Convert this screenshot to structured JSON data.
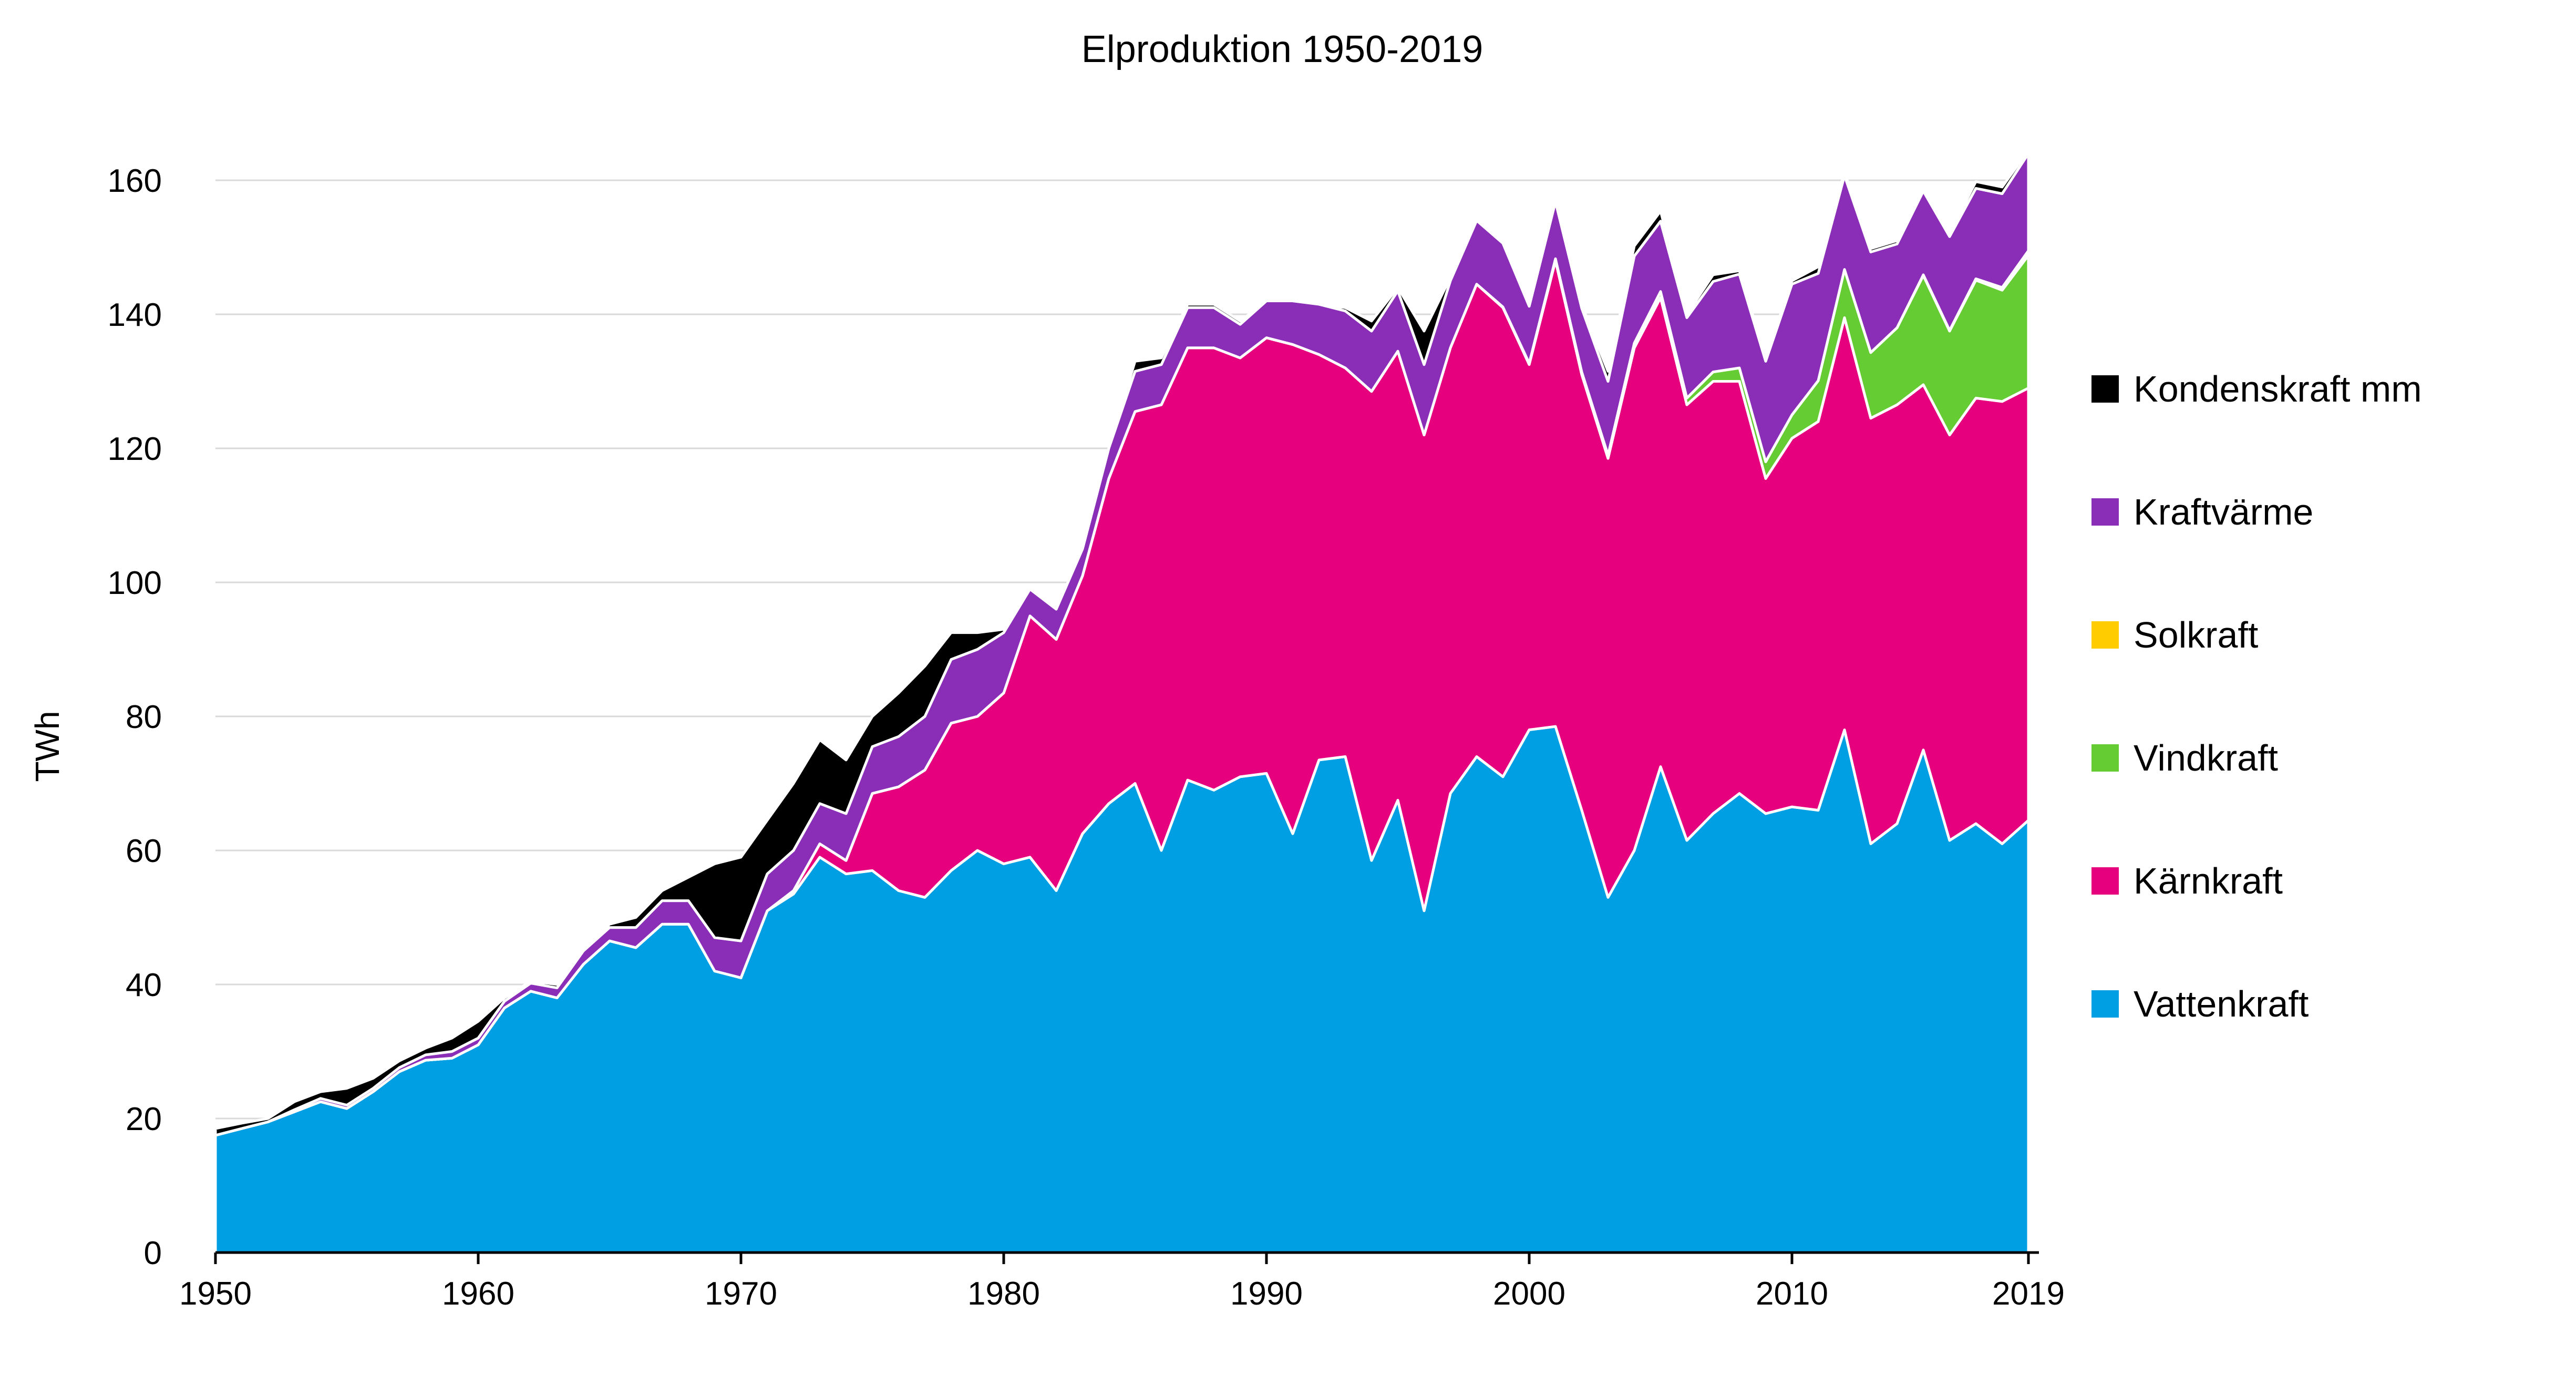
{
  "chart_data": {
    "type": "area",
    "stacked": true,
    "title": "Elproduktion 1950-2019",
    "ylabel": "TWh",
    "xlabel": "",
    "ylim": [
      0,
      170
    ],
    "yticks": [
      0,
      20,
      40,
      60,
      80,
      100,
      120,
      140,
      160
    ],
    "xlim": [
      1950,
      2019
    ],
    "xticks": [
      1950,
      1960,
      1970,
      1980,
      1990,
      2000,
      2010,
      2019
    ],
    "grid": "horizontal",
    "legend_position": "right",
    "years": [
      1950,
      1951,
      1952,
      1953,
      1954,
      1955,
      1956,
      1957,
      1958,
      1959,
      1960,
      1961,
      1962,
      1963,
      1964,
      1965,
      1966,
      1967,
      1968,
      1969,
      1970,
      1971,
      1972,
      1973,
      1974,
      1975,
      1976,
      1977,
      1978,
      1979,
      1980,
      1981,
      1982,
      1983,
      1984,
      1985,
      1986,
      1987,
      1988,
      1989,
      1990,
      1991,
      1992,
      1993,
      1994,
      1995,
      1996,
      1997,
      1998,
      1999,
      2000,
      2001,
      2002,
      2003,
      2004,
      2005,
      2006,
      2007,
      2008,
      2009,
      2010,
      2011,
      2012,
      2013,
      2014,
      2015,
      2016,
      2017,
      2018,
      2019
    ],
    "series": [
      {
        "name": "Vattenkraft",
        "color": "#009fe3",
        "values": [
          17.5,
          18.5,
          19.5,
          21.0,
          22.5,
          21.5,
          24.0,
          27.0,
          28.7,
          29.0,
          31.0,
          36.5,
          39.0,
          38.0,
          43.0,
          46.5,
          45.5,
          49.0,
          49.0,
          42.0,
          41.0,
          51.0,
          53.5,
          59.0,
          56.5,
          57.0,
          54.0,
          53.0,
          57.0,
          60.0,
          58.0,
          59.0,
          54.0,
          62.5,
          67.0,
          70.0,
          60.0,
          70.5,
          69.0,
          71.0,
          71.5,
          62.5,
          73.5,
          74.0,
          58.5,
          67.5,
          51.0,
          68.5,
          74.0,
          71.0,
          78.0,
          78.5,
          66.0,
          53.0,
          60.0,
          72.5,
          61.5,
          65.5,
          68.5,
          65.5,
          66.5,
          66.0,
          78.0,
          61.0,
          64.0,
          75.0,
          61.5,
          64.0,
          61.0,
          64.5
        ]
      },
      {
        "name": "Kärnkraft",
        "color": "#e6007e",
        "values": [
          0,
          0,
          0,
          0,
          0,
          0,
          0,
          0,
          0,
          0,
          0,
          0,
          0,
          0,
          0,
          0,
          0,
          0,
          0,
          0,
          0,
          0,
          0.5,
          2.0,
          2.0,
          11.5,
          15.5,
          19.0,
          22.0,
          20.0,
          25.5,
          36.0,
          37.5,
          38.5,
          48.5,
          55.5,
          66.5,
          64.5,
          66.0,
          62.5,
          65.0,
          73.0,
          60.5,
          58.0,
          70.0,
          67.0,
          71.0,
          66.5,
          70.5,
          70.0,
          54.5,
          69.5,
          65.0,
          65.5,
          75.0,
          70.0,
          65.0,
          64.5,
          61.5,
          50.0,
          55.0,
          58.0,
          61.5,
          63.5,
          62.5,
          54.5,
          60.5,
          63.5,
          66.0,
          64.5
        ]
      },
      {
        "name": "Vindkraft",
        "color": "#66cc33",
        "values": [
          0,
          0,
          0,
          0,
          0,
          0,
          0,
          0,
          0,
          0,
          0,
          0,
          0,
          0,
          0,
          0,
          0,
          0,
          0,
          0,
          0,
          0,
          0,
          0,
          0,
          0,
          0,
          0,
          0,
          0,
          0,
          0,
          0,
          0,
          0,
          0,
          0,
          0,
          0,
          0,
          0,
          0,
          0,
          0,
          0,
          0,
          0,
          0,
          0,
          0.1,
          0.2,
          0.3,
          0.4,
          0.5,
          0.7,
          0.9,
          1.0,
          1.4,
          2.0,
          2.5,
          3.5,
          6.1,
          7.2,
          9.8,
          11.5,
          16.3,
          15.5,
          17.6,
          16.6,
          19.8
        ]
      },
      {
        "name": "Solkraft",
        "color": "#ffcc00",
        "values": [
          0,
          0,
          0,
          0,
          0,
          0,
          0,
          0,
          0,
          0,
          0,
          0,
          0,
          0,
          0,
          0,
          0,
          0,
          0,
          0,
          0,
          0,
          0,
          0,
          0,
          0,
          0,
          0,
          0,
          0,
          0,
          0,
          0,
          0,
          0,
          0,
          0,
          0,
          0,
          0,
          0,
          0,
          0,
          0,
          0,
          0,
          0,
          0,
          0,
          0,
          0,
          0,
          0,
          0,
          0,
          0,
          0,
          0,
          0,
          0,
          0,
          0,
          0,
          0,
          0,
          0.1,
          0.1,
          0.2,
          0.4,
          0.7
        ]
      },
      {
        "name": "Kraftvärme",
        "color": "#8a2eb8",
        "values": [
          0,
          0,
          0,
          0.3,
          0.5,
          0.5,
          0.5,
          0.6,
          0.8,
          1.0,
          1.0,
          1.0,
          1.2,
          1.5,
          2.0,
          2.0,
          3.0,
          3.5,
          3.5,
          5.0,
          5.5,
          5.5,
          6.0,
          6.0,
          7.0,
          7.0,
          7.5,
          8.0,
          9.5,
          10.0,
          9.0,
          4.0,
          4.5,
          4.0,
          4.5,
          6.0,
          6.0,
          6.0,
          6.0,
          5.0,
          5.5,
          6.5,
          7.5,
          8.5,
          9.0,
          9.0,
          10.5,
          10.0,
          9.5,
          9.5,
          8.5,
          8.5,
          9.5,
          11.0,
          13.0,
          10.5,
          12.0,
          13.5,
          14.0,
          15.0,
          19.5,
          16.0,
          14.0,
          15.0,
          12.5,
          12.5,
          14.0,
          13.5,
          14.0,
          14.5
        ]
      },
      {
        "name": "Kondenskraft mm",
        "color": "#000000",
        "values": [
          1.0,
          0.8,
          0.5,
          1.2,
          1.0,
          2.5,
          1.5,
          1.0,
          1.0,
          2.0,
          2.5,
          0.5,
          0.3,
          0.5,
          0.3,
          0.5,
          1.5,
          1.5,
          3.5,
          11.0,
          12.5,
          8.0,
          10.0,
          9.5,
          8.0,
          4.5,
          6.5,
          7.5,
          4.0,
          2.5,
          0.5,
          0,
          0,
          0,
          0,
          1.5,
          1.0,
          0.5,
          0.5,
          0.5,
          0,
          0,
          0,
          0.5,
          1.5,
          0.5,
          5.0,
          0.5,
          0.5,
          0.5,
          0.5,
          0.5,
          0.5,
          1.5,
          1.5,
          1.5,
          0.5,
          1.0,
          0.5,
          0.5,
          0.5,
          1.0,
          0.5,
          0.5,
          0.5,
          0.5,
          0.5,
          1.0,
          1.0,
          0.5
        ]
      }
    ],
    "legend_order": [
      "Kondenskraft mm",
      "Kraftvärme",
      "Solkraft",
      "Vindkraft",
      "Kärnkraft",
      "Vattenkraft"
    ]
  }
}
